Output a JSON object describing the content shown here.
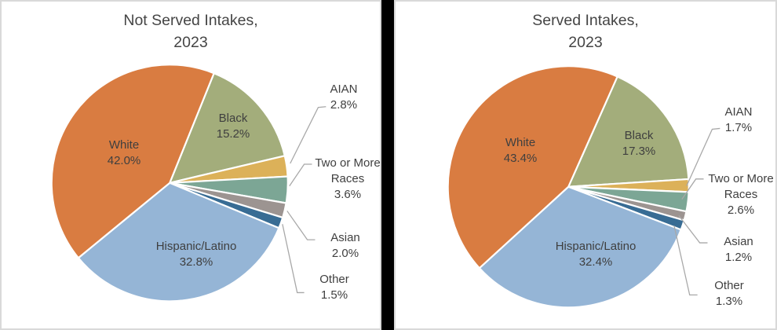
{
  "figure": {
    "background_color": "#000000",
    "panel_background": "#ffffff",
    "panel_border_color": "#d9d9d9",
    "title_color": "#454545",
    "label_color": "#3f3f3f",
    "leader_line_color": "#a8a8a8",
    "slice_gap_color": "#ffffff"
  },
  "chart_data": [
    {
      "id": "not_served",
      "type": "pie",
      "title_lines": [
        "Not Served Intakes,",
        "2023"
      ],
      "rotation_deg": 22,
      "legend_position": "none",
      "slices": [
        {
          "name": "Black",
          "value": 15.2,
          "display": [
            "Black",
            "15.2%"
          ],
          "color": "#a3ad7b",
          "label_placement": "inside"
        },
        {
          "name": "AIAN",
          "value": 2.8,
          "display": [
            "AIAN",
            "2.8%"
          ],
          "color": "#dcb159",
          "label_placement": "callout"
        },
        {
          "name": "Two or More Races",
          "value": 3.6,
          "display": [
            "Two or More",
            "Races",
            "3.6%"
          ],
          "color": "#7ca695",
          "label_placement": "callout"
        },
        {
          "name": "Asian",
          "value": 2.0,
          "display": [
            "Asian",
            "2.0%"
          ],
          "color": "#9c9491",
          "label_placement": "callout"
        },
        {
          "name": "Other",
          "value": 1.5,
          "display": [
            "Other",
            "1.5%"
          ],
          "color": "#386c94",
          "label_placement": "callout"
        },
        {
          "name": "Hispanic/Latino",
          "value": 32.8,
          "display": [
            "Hispanic/Latino",
            "32.8%"
          ],
          "color": "#95b5d6",
          "label_placement": "inside"
        },
        {
          "name": "White",
          "value": 42.0,
          "display": [
            "White",
            "42.0%"
          ],
          "color": "#d97c41",
          "label_placement": "inside"
        }
      ]
    },
    {
      "id": "served",
      "type": "pie",
      "title_lines": [
        "Served Intakes,",
        "2023"
      ],
      "rotation_deg": 24,
      "legend_position": "none",
      "slices": [
        {
          "name": "Black",
          "value": 17.3,
          "display": [
            "Black",
            "17.3%"
          ],
          "color": "#a3ad7b",
          "label_placement": "inside"
        },
        {
          "name": "AIAN",
          "value": 1.7,
          "display": [
            "AIAN",
            "1.7%"
          ],
          "color": "#dcb159",
          "label_placement": "callout"
        },
        {
          "name": "Two or More Races",
          "value": 2.6,
          "display": [
            "Two or More",
            "Races",
            "2.6%"
          ],
          "color": "#7ca695",
          "label_placement": "callout"
        },
        {
          "name": "Asian",
          "value": 1.2,
          "display": [
            "Asian",
            "1.2%"
          ],
          "color": "#9c9491",
          "label_placement": "callout"
        },
        {
          "name": "Other",
          "value": 1.3,
          "display": [
            "Other",
            "1.3%"
          ],
          "color": "#386c94",
          "label_placement": "callout"
        },
        {
          "name": "Hispanic/Latino",
          "value": 32.4,
          "display": [
            "Hispanic/Latino",
            "32.4%"
          ],
          "color": "#95b5d6",
          "label_placement": "inside"
        },
        {
          "name": "White",
          "value": 43.4,
          "display": [
            "White",
            "43.4%"
          ],
          "color": "#d97c41",
          "label_placement": "inside"
        }
      ]
    }
  ]
}
